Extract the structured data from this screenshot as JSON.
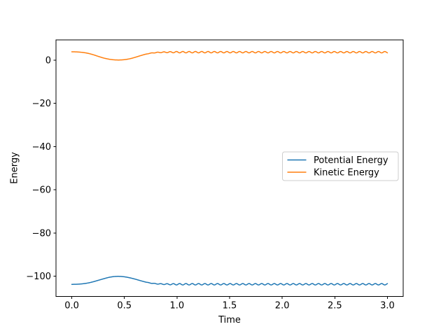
{
  "chart_data": {
    "type": "line",
    "title": "",
    "xlabel": "Time",
    "ylabel": "Energy",
    "xlim": [
      -0.15,
      3.15
    ],
    "ylim": [
      -109.4,
      9.4
    ],
    "grid": false,
    "xticks": {
      "values": [
        0.0,
        0.5,
        1.0,
        1.5,
        2.0,
        2.5,
        3.0
      ],
      "labels": [
        "0.0",
        "0.5",
        "1.0",
        "1.5",
        "2.0",
        "2.5",
        "3.0"
      ]
    },
    "yticks": {
      "values": [
        0,
        -20,
        -40,
        -60,
        -80,
        -100
      ],
      "labels": [
        "0",
        "−20",
        "−40",
        "−60",
        "−80",
        "−100"
      ]
    },
    "legend": {
      "position": "center right",
      "entries": [
        "Potential Energy",
        "Kinetic Energy"
      ],
      "border_color": "#cccccc",
      "background": "#ffffff"
    },
    "sample_step": 0.004,
    "series": [
      {
        "name": "Potential Energy",
        "color": "#1f77b4",
        "line_width": 1.5,
        "summary": {
          "start_value": -103.8,
          "extremum_value": -100.1,
          "extremum_time": 0.45,
          "steady_value": -103.75,
          "ripple_peak_to_peak": 0.64
        },
        "keyframes": [
          [
            0.0,
            -103.8
          ],
          [
            0.05,
            -103.74
          ],
          [
            0.1,
            -103.55
          ],
          [
            0.15,
            -103.2
          ],
          [
            0.2,
            -102.65
          ],
          [
            0.25,
            -101.95
          ],
          [
            0.3,
            -101.25
          ],
          [
            0.35,
            -100.6
          ],
          [
            0.4,
            -100.2
          ],
          [
            0.45,
            -100.1
          ],
          [
            0.5,
            -100.3
          ],
          [
            0.55,
            -100.75
          ],
          [
            0.6,
            -101.35
          ],
          [
            0.65,
            -102.05
          ],
          [
            0.7,
            -102.7
          ],
          [
            0.75,
            -103.2
          ],
          [
            0.8,
            -103.5
          ],
          [
            0.85,
            -103.65
          ],
          [
            0.9,
            -103.72
          ],
          [
            0.95,
            -103.75
          ],
          [
            3.0,
            -103.75
          ]
        ],
        "ripple": {
          "onset": 0.68,
          "full": 1.0,
          "amplitude": 0.32,
          "period": 0.06,
          "phase_deg": 180
        }
      },
      {
        "name": "Kinetic Energy",
        "color": "#ff7f0e",
        "line_width": 1.5,
        "summary": {
          "start_value": 3.9,
          "extremum_value": 0.1,
          "extremum_time": 0.45,
          "steady_value": 3.7,
          "ripple_peak_to_peak": 0.64
        },
        "keyframes": [
          [
            0.0,
            3.9
          ],
          [
            0.05,
            3.83
          ],
          [
            0.1,
            3.62
          ],
          [
            0.15,
            3.22
          ],
          [
            0.2,
            2.6
          ],
          [
            0.25,
            1.8
          ],
          [
            0.3,
            1.05
          ],
          [
            0.35,
            0.5
          ],
          [
            0.4,
            0.18
          ],
          [
            0.45,
            0.1
          ],
          [
            0.5,
            0.25
          ],
          [
            0.55,
            0.65
          ],
          [
            0.6,
            1.3
          ],
          [
            0.65,
            2.05
          ],
          [
            0.7,
            2.75
          ],
          [
            0.75,
            3.25
          ],
          [
            0.8,
            3.52
          ],
          [
            0.85,
            3.65
          ],
          [
            0.9,
            3.7
          ],
          [
            0.95,
            3.72
          ],
          [
            3.0,
            3.7
          ]
        ],
        "ripple": {
          "onset": 0.68,
          "full": 1.0,
          "amplitude": 0.32,
          "period": 0.06,
          "phase_deg": 0
        }
      }
    ]
  }
}
